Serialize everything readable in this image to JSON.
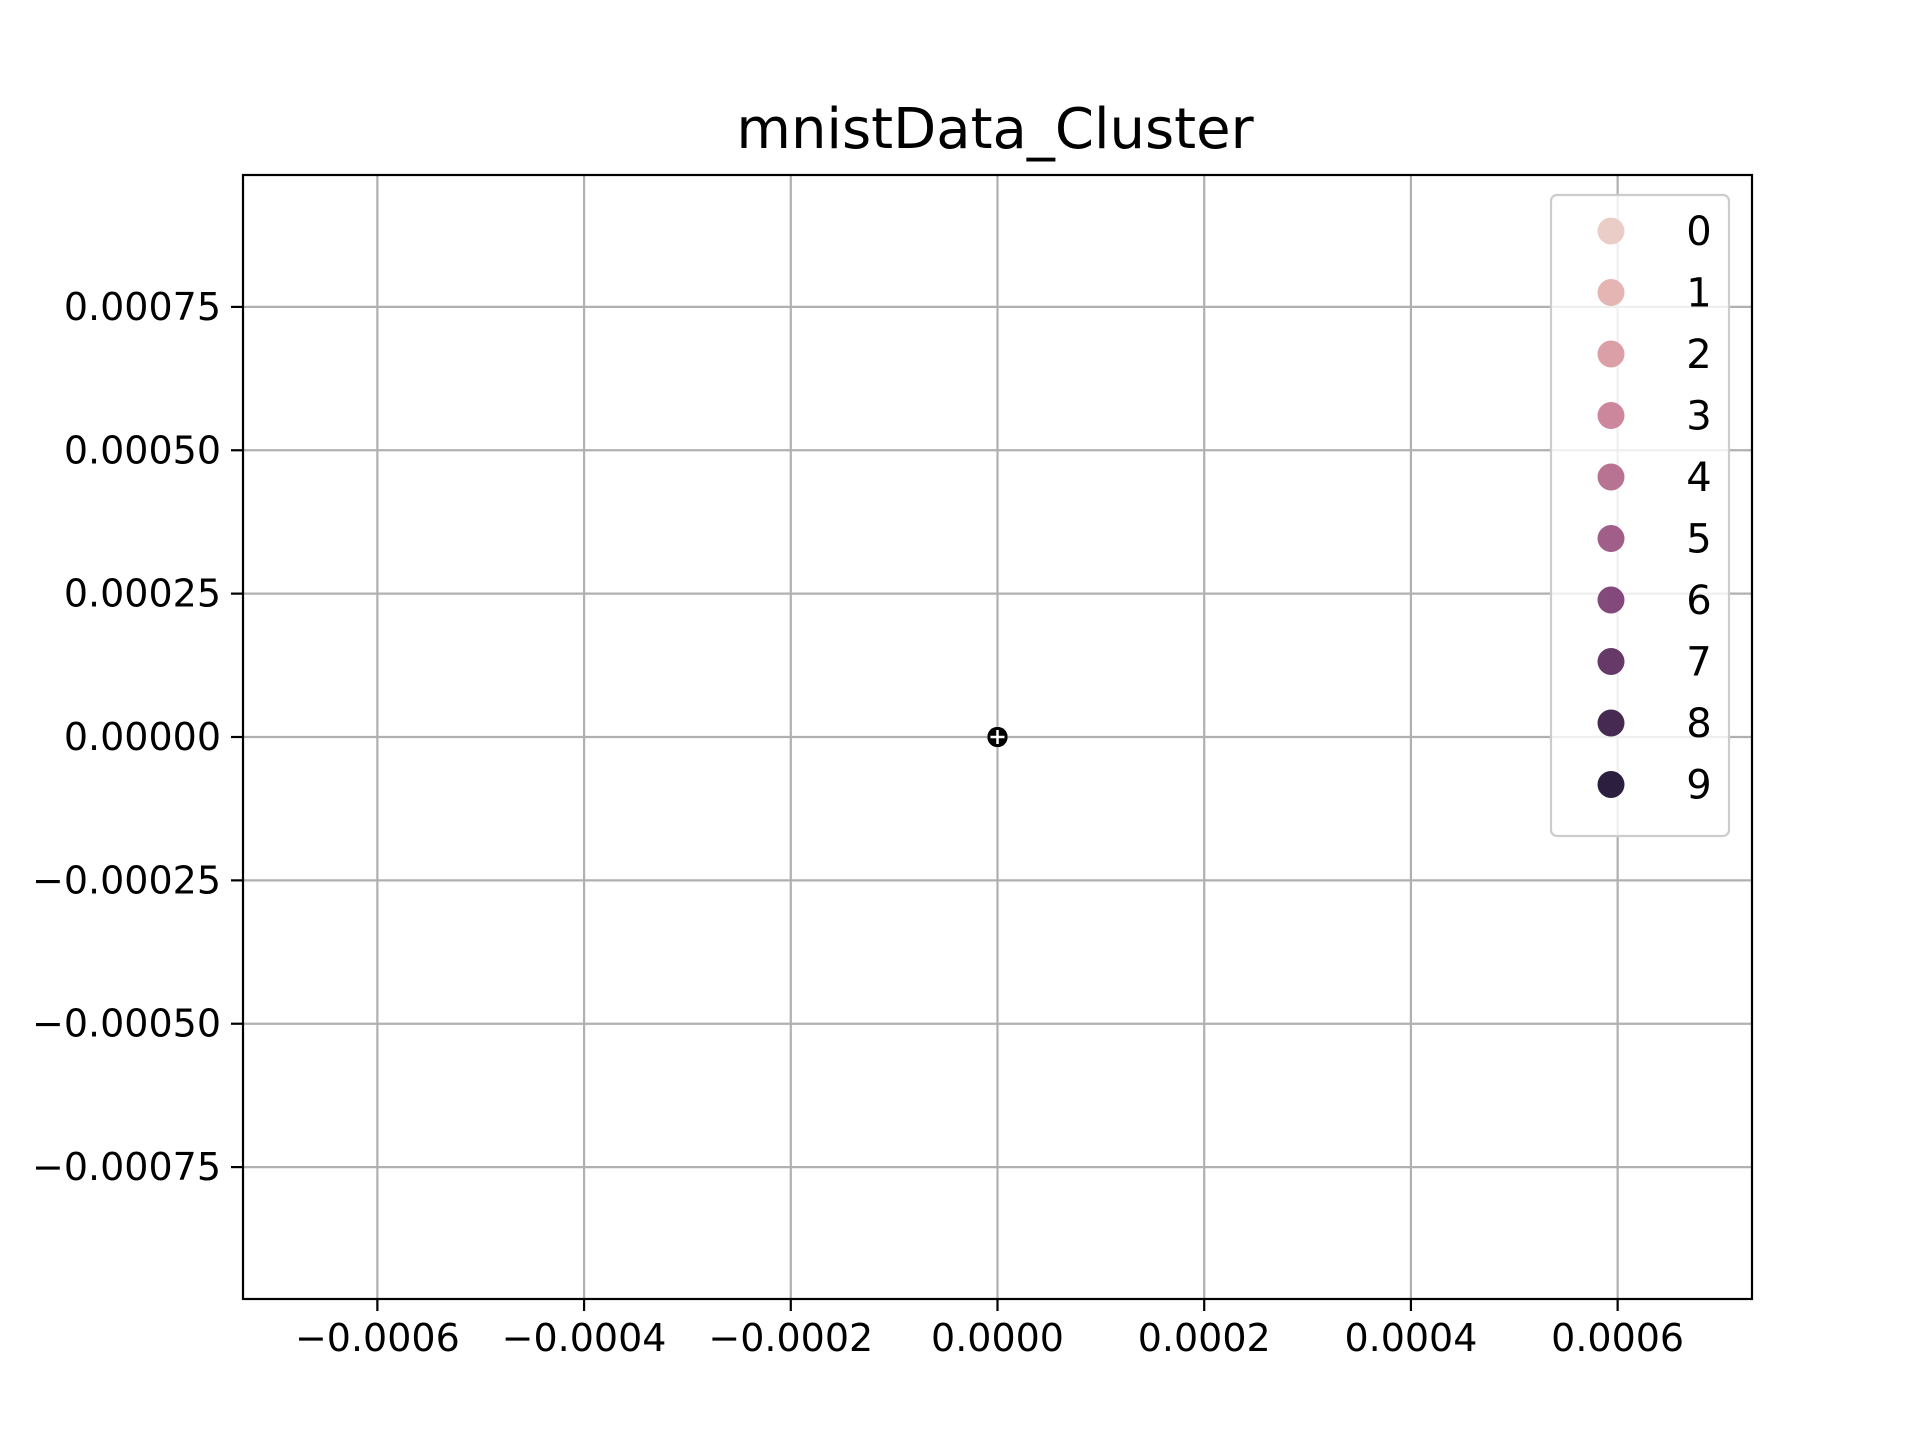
{
  "chart_data": {
    "type": "scatter",
    "title": "mnistData_Cluster",
    "xlabel": "",
    "ylabel": "",
    "xlim": [
      -0.00073,
      0.00073
    ],
    "ylim": [
      -0.00098,
      0.00098
    ],
    "x_ticks": [
      -0.0006,
      -0.0004,
      -0.0002,
      0.0,
      0.0002,
      0.0004,
      0.0006
    ],
    "x_tick_labels": [
      "−0.0006",
      "−0.0004",
      "−0.0002",
      "0.0000",
      "0.0002",
      "0.0004",
      "0.0006"
    ],
    "y_ticks": [
      0.00075,
      0.0005,
      0.00025,
      0.0,
      -0.00025,
      -0.0005,
      -0.00075
    ],
    "y_tick_labels": [
      "0.00075",
      "0.00050",
      "0.00025",
      "0.00000",
      "−0.00025",
      "−0.00050",
      "−0.00075"
    ],
    "grid": true,
    "legend_position": "top-right",
    "series": [
      {
        "name": "0",
        "color": "#ebcdc8",
        "points": [
          [
            0.0,
            0.0
          ]
        ]
      },
      {
        "name": "1",
        "color": "#e4b5b3",
        "points": [
          [
            0.0,
            0.0
          ]
        ]
      },
      {
        "name": "2",
        "color": "#da9fa7",
        "points": [
          [
            0.0,
            0.0
          ]
        ]
      },
      {
        "name": "3",
        "color": "#cc879c",
        "points": [
          [
            0.0,
            0.0
          ]
        ]
      },
      {
        "name": "4",
        "color": "#b97392",
        "points": [
          [
            0.0,
            0.0
          ]
        ]
      },
      {
        "name": "5",
        "color": "#a05e88",
        "points": [
          [
            0.0,
            0.0
          ]
        ]
      },
      {
        "name": "6",
        "color": "#84497b",
        "points": [
          [
            0.0,
            0.0
          ]
        ]
      },
      {
        "name": "7",
        "color": "#663968",
        "points": [
          [
            0.0,
            0.0
          ]
        ]
      },
      {
        "name": "8",
        "color": "#462a51",
        "points": [
          [
            0.0,
            0.0
          ]
        ]
      },
      {
        "name": "9",
        "color": "#2c1e3e",
        "points": [
          [
            0.0,
            0.0
          ]
        ]
      }
    ],
    "centroid": {
      "x": 0.0,
      "y": 0.0,
      "color": "#000000",
      "marker": "plus"
    }
  },
  "colors": {
    "grid": "#b0b0b0",
    "axes": "#000000",
    "legend_border": "#cccccc"
  }
}
